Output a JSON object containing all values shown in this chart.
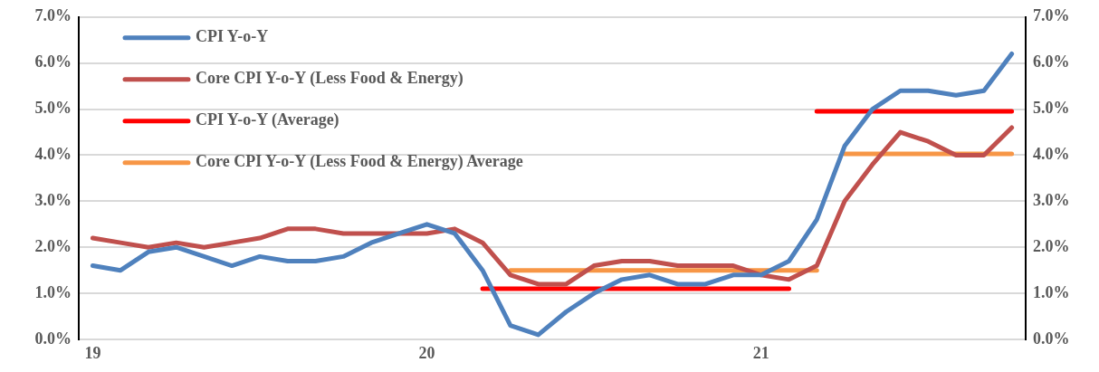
{
  "chart_data": {
    "type": "line",
    "categories": [
      "19",
      null,
      null,
      null,
      null,
      null,
      null,
      null,
      null,
      null,
      null,
      null,
      "20",
      null,
      null,
      null,
      null,
      null,
      null,
      null,
      null,
      null,
      null,
      null,
      "21",
      null,
      null,
      null,
      null,
      null,
      null,
      null,
      null,
      null
    ],
    "series": [
      {
        "name": "CPI Y-o-Y",
        "color": "#4f81bd",
        "values": [
          1.6,
          1.5,
          1.9,
          2.0,
          1.8,
          1.6,
          1.8,
          1.7,
          1.7,
          1.8,
          2.1,
          2.3,
          2.5,
          2.3,
          1.5,
          0.3,
          0.1,
          0.6,
          1.0,
          1.3,
          1.4,
          1.2,
          1.2,
          1.4,
          1.4,
          1.7,
          2.6,
          4.2,
          5.0,
          5.4,
          5.4,
          5.3,
          5.4,
          6.2
        ]
      },
      {
        "name": "Core CPI Y-o-Y (Less Food & Energy)",
        "color": "#c0504d",
        "values": [
          2.2,
          2.1,
          2.0,
          2.1,
          2.0,
          2.1,
          2.2,
          2.4,
          2.4,
          2.3,
          2.3,
          2.3,
          2.3,
          2.4,
          2.1,
          1.4,
          1.2,
          1.2,
          1.6,
          1.7,
          1.7,
          1.6,
          1.6,
          1.6,
          1.4,
          1.3,
          1.6,
          3.0,
          3.8,
          4.5,
          4.3,
          4.0,
          4.0,
          4.6
        ]
      },
      {
        "name": "CPI Y-o-Y (Average)",
        "color": "#ff0000",
        "values": [
          null,
          null,
          null,
          null,
          null,
          null,
          null,
          null,
          null,
          null,
          null,
          null,
          null,
          null,
          1.1,
          1.1,
          1.1,
          1.1,
          1.1,
          1.1,
          1.1,
          1.1,
          1.1,
          1.1,
          1.1,
          1.1,
          null,
          null,
          null,
          null,
          null,
          null,
          null,
          null
        ]
      },
      {
        "name": "Core CPI Y-o-Y (Less Food & Energy) Average",
        "color": "#f79646",
        "values": [
          null,
          null,
          null,
          null,
          null,
          null,
          null,
          null,
          null,
          null,
          null,
          null,
          null,
          null,
          null,
          1.5,
          1.5,
          1.5,
          1.5,
          1.5,
          1.5,
          1.5,
          1.5,
          1.5,
          1.5,
          1.5,
          1.5,
          null,
          null,
          null,
          null,
          null,
          null,
          null
        ]
      },
      {
        "color": "#ff0000",
        "values": [
          null,
          null,
          null,
          null,
          null,
          null,
          null,
          null,
          null,
          null,
          null,
          null,
          null,
          null,
          null,
          null,
          null,
          null,
          null,
          null,
          null,
          null,
          null,
          null,
          null,
          null,
          4.95,
          4.95,
          4.95,
          4.95,
          4.95,
          4.95,
          4.95,
          4.95
        ]
      },
      {
        "color": "#f79646",
        "values": [
          null,
          null,
          null,
          null,
          null,
          null,
          null,
          null,
          null,
          null,
          null,
          null,
          null,
          null,
          null,
          null,
          null,
          null,
          null,
          null,
          null,
          null,
          null,
          null,
          null,
          null,
          null,
          4.03,
          4.03,
          4.03,
          4.03,
          4.03,
          4.03,
          4.03
        ]
      }
    ],
    "ylim": [
      0,
      7
    ],
    "yticks": [
      {
        "value": 0,
        "label": "0.0%"
      },
      {
        "value": 1,
        "label": "1.0%"
      },
      {
        "value": 2,
        "label": "2.0%"
      },
      {
        "value": 3,
        "label": "3.0%"
      },
      {
        "value": 4,
        "label": "4.0%"
      },
      {
        "value": 5,
        "label": "5.0%"
      },
      {
        "value": 6,
        "label": "6.0%"
      },
      {
        "value": 7,
        "label": "7.0%"
      }
    ],
    "y2lim": [
      0,
      7
    ],
    "y2ticks": [
      {
        "value": 0,
        "label": "0.0%"
      },
      {
        "value": 1,
        "label": "1.0%"
      },
      {
        "value": 2,
        "label": "2.0%"
      },
      {
        "value": 3,
        "label": "3.0%"
      },
      {
        "value": 4,
        "label": "4.0%"
      },
      {
        "value": 5,
        "label": "5.0%"
      },
      {
        "value": 6,
        "label": "6.0%"
      },
      {
        "value": 7,
        "label": "7.0%"
      }
    ],
    "grid": "y",
    "legend": "top left",
    "marker": "none",
    "line_style": "solid"
  }
}
